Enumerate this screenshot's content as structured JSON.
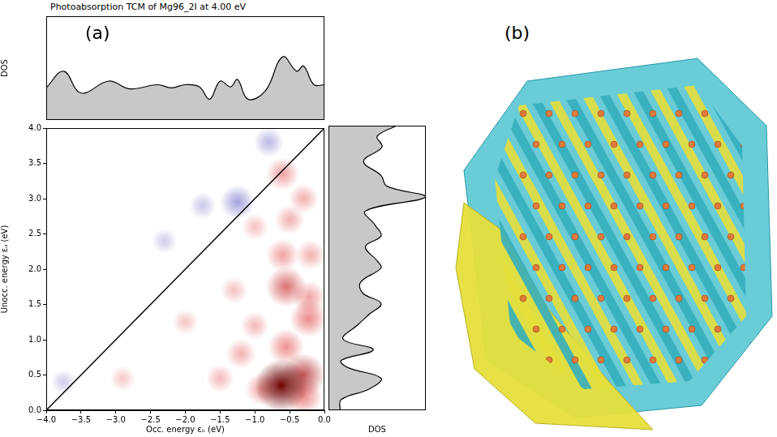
{
  "figure": {
    "title": "Photoabsorption TCM of Mg96_2I at 4.00 eV",
    "panel_labels": [
      "(a)",
      "(b)"
    ]
  },
  "chart_data": [
    {
      "type": "area",
      "orientation": "vertical",
      "y_label": "DOS",
      "tick_labels": false,
      "color": "#c8c8c8",
      "x": [
        -4.0,
        -3.75,
        -3.5,
        -3.1,
        -2.8,
        -2.4,
        -2.2,
        -2.0,
        -1.8,
        -1.65,
        -1.5,
        -1.35,
        -1.25,
        -1.1,
        -0.85,
        -0.6,
        -0.4,
        -0.3,
        -0.15,
        0.0
      ],
      "values": [
        0.31,
        0.47,
        0.26,
        0.375,
        0.3,
        0.34,
        0.31,
        0.34,
        0.32,
        0.2,
        0.375,
        0.32,
        0.39,
        0.2,
        0.28,
        0.61,
        0.47,
        0.52,
        0.34,
        0.34
      ],
      "xlim": [
        -4,
        0
      ],
      "ylim": [
        0,
        1
      ]
    },
    {
      "type": "heatmap",
      "x_label": "Occ. energy εₒ (eV)",
      "y_label": "Unocc. energy εᵤ (eV)",
      "xlim": [
        -4,
        0
      ],
      "ylim": [
        0,
        4
      ],
      "xticks": [
        {
          "value": -4,
          "label": "−4.0"
        },
        {
          "value": -3.5,
          "label": "−3.5"
        },
        {
          "value": -3,
          "label": "−3.0"
        },
        {
          "value": -2.5,
          "label": "−2.5"
        },
        {
          "value": -2,
          "label": "−2.0"
        },
        {
          "value": -1.5,
          "label": "−1.5"
        },
        {
          "value": -1,
          "label": "−1.0"
        },
        {
          "value": -0.5,
          "label": "−0.5"
        },
        {
          "value": 0,
          "label": "0.0"
        }
      ],
      "yticks": [
        {
          "value": 0,
          "label": "0.0"
        },
        {
          "value": 0.5,
          "label": "0.5"
        },
        {
          "value": 1,
          "label": "1.0"
        },
        {
          "value": 1.5,
          "label": "1.5"
        },
        {
          "value": 2,
          "label": "2.0"
        },
        {
          "value": 2.5,
          "label": "2.5"
        },
        {
          "value": 3,
          "label": "3.0"
        },
        {
          "value": 3.5,
          "label": "3.5"
        },
        {
          "value": 4,
          "label": "4.0"
        }
      ],
      "color_range": [
        -1,
        1
      ],
      "spots": [
        {
          "x": -0.62,
          "y": 0.35,
          "value": 1.0
        },
        {
          "x": -0.3,
          "y": 0.5,
          "value": 0.7
        },
        {
          "x": -0.3,
          "y": 0.2,
          "value": 0.5
        },
        {
          "x": -0.23,
          "y": 1.3,
          "value": 0.5
        },
        {
          "x": -0.55,
          "y": 0.9,
          "value": 0.45
        },
        {
          "x": -0.55,
          "y": 1.75,
          "value": 0.6
        },
        {
          "x": -0.22,
          "y": 1.6,
          "value": 0.35
        },
        {
          "x": -0.6,
          "y": 2.2,
          "value": 0.35
        },
        {
          "x": -0.2,
          "y": 2.2,
          "value": 0.25
        },
        {
          "x": -0.5,
          "y": 2.7,
          "value": 0.25
        },
        {
          "x": -0.6,
          "y": 3.35,
          "value": 0.35
        },
        {
          "x": -0.3,
          "y": 3.0,
          "value": 0.25
        },
        {
          "x": -1.2,
          "y": 0.8,
          "value": 0.25
        },
        {
          "x": -1.5,
          "y": 0.45,
          "value": 0.2
        },
        {
          "x": -2.0,
          "y": 1.25,
          "value": 0.12
        },
        {
          "x": -1.3,
          "y": 1.7,
          "value": 0.15
        },
        {
          "x": -2.9,
          "y": 0.45,
          "value": 0.1
        },
        {
          "x": -1.0,
          "y": 2.6,
          "value": 0.15
        },
        {
          "x": -1.0,
          "y": 1.2,
          "value": 0.2
        },
        {
          "x": -0.9,
          "y": 0.3,
          "value": 0.35
        },
        {
          "x": -1.25,
          "y": 2.95,
          "value": -0.4
        },
        {
          "x": -0.8,
          "y": 3.8,
          "value": -0.25
        },
        {
          "x": -1.75,
          "y": 2.9,
          "value": -0.15
        },
        {
          "x": -2.3,
          "y": 2.4,
          "value": -0.1
        },
        {
          "x": -3.75,
          "y": 0.4,
          "value": -0.1
        }
      ],
      "lines": [
        {
          "x": [
            -4,
            0
          ],
          "y": [
            0,
            4
          ],
          "color": "#000000"
        }
      ]
    },
    {
      "type": "area",
      "orientation": "horizontal",
      "x_label": "DOS",
      "tick_labels": false,
      "color": "#c8c8c8",
      "y": [
        0.0,
        0.15,
        0.3,
        0.45,
        0.6,
        0.7,
        0.85,
        1.0,
        1.2,
        1.35,
        1.5,
        1.65,
        1.8,
        2.0,
        2.1,
        2.3,
        2.45,
        2.6,
        2.8,
        3.0,
        3.15,
        3.3,
        3.5,
        3.7,
        3.85,
        4.0
      ],
      "values": [
        0.12,
        0.13,
        0.42,
        0.54,
        0.2,
        0.13,
        0.46,
        0.15,
        0.3,
        0.42,
        0.54,
        0.35,
        0.33,
        0.54,
        0.5,
        0.38,
        0.54,
        0.48,
        0.38,
        1.0,
        0.6,
        0.54,
        0.36,
        0.55,
        0.5,
        0.7
      ],
      "xlim": [
        0,
        1
      ],
      "ylim": [
        0,
        4
      ]
    }
  ]
}
